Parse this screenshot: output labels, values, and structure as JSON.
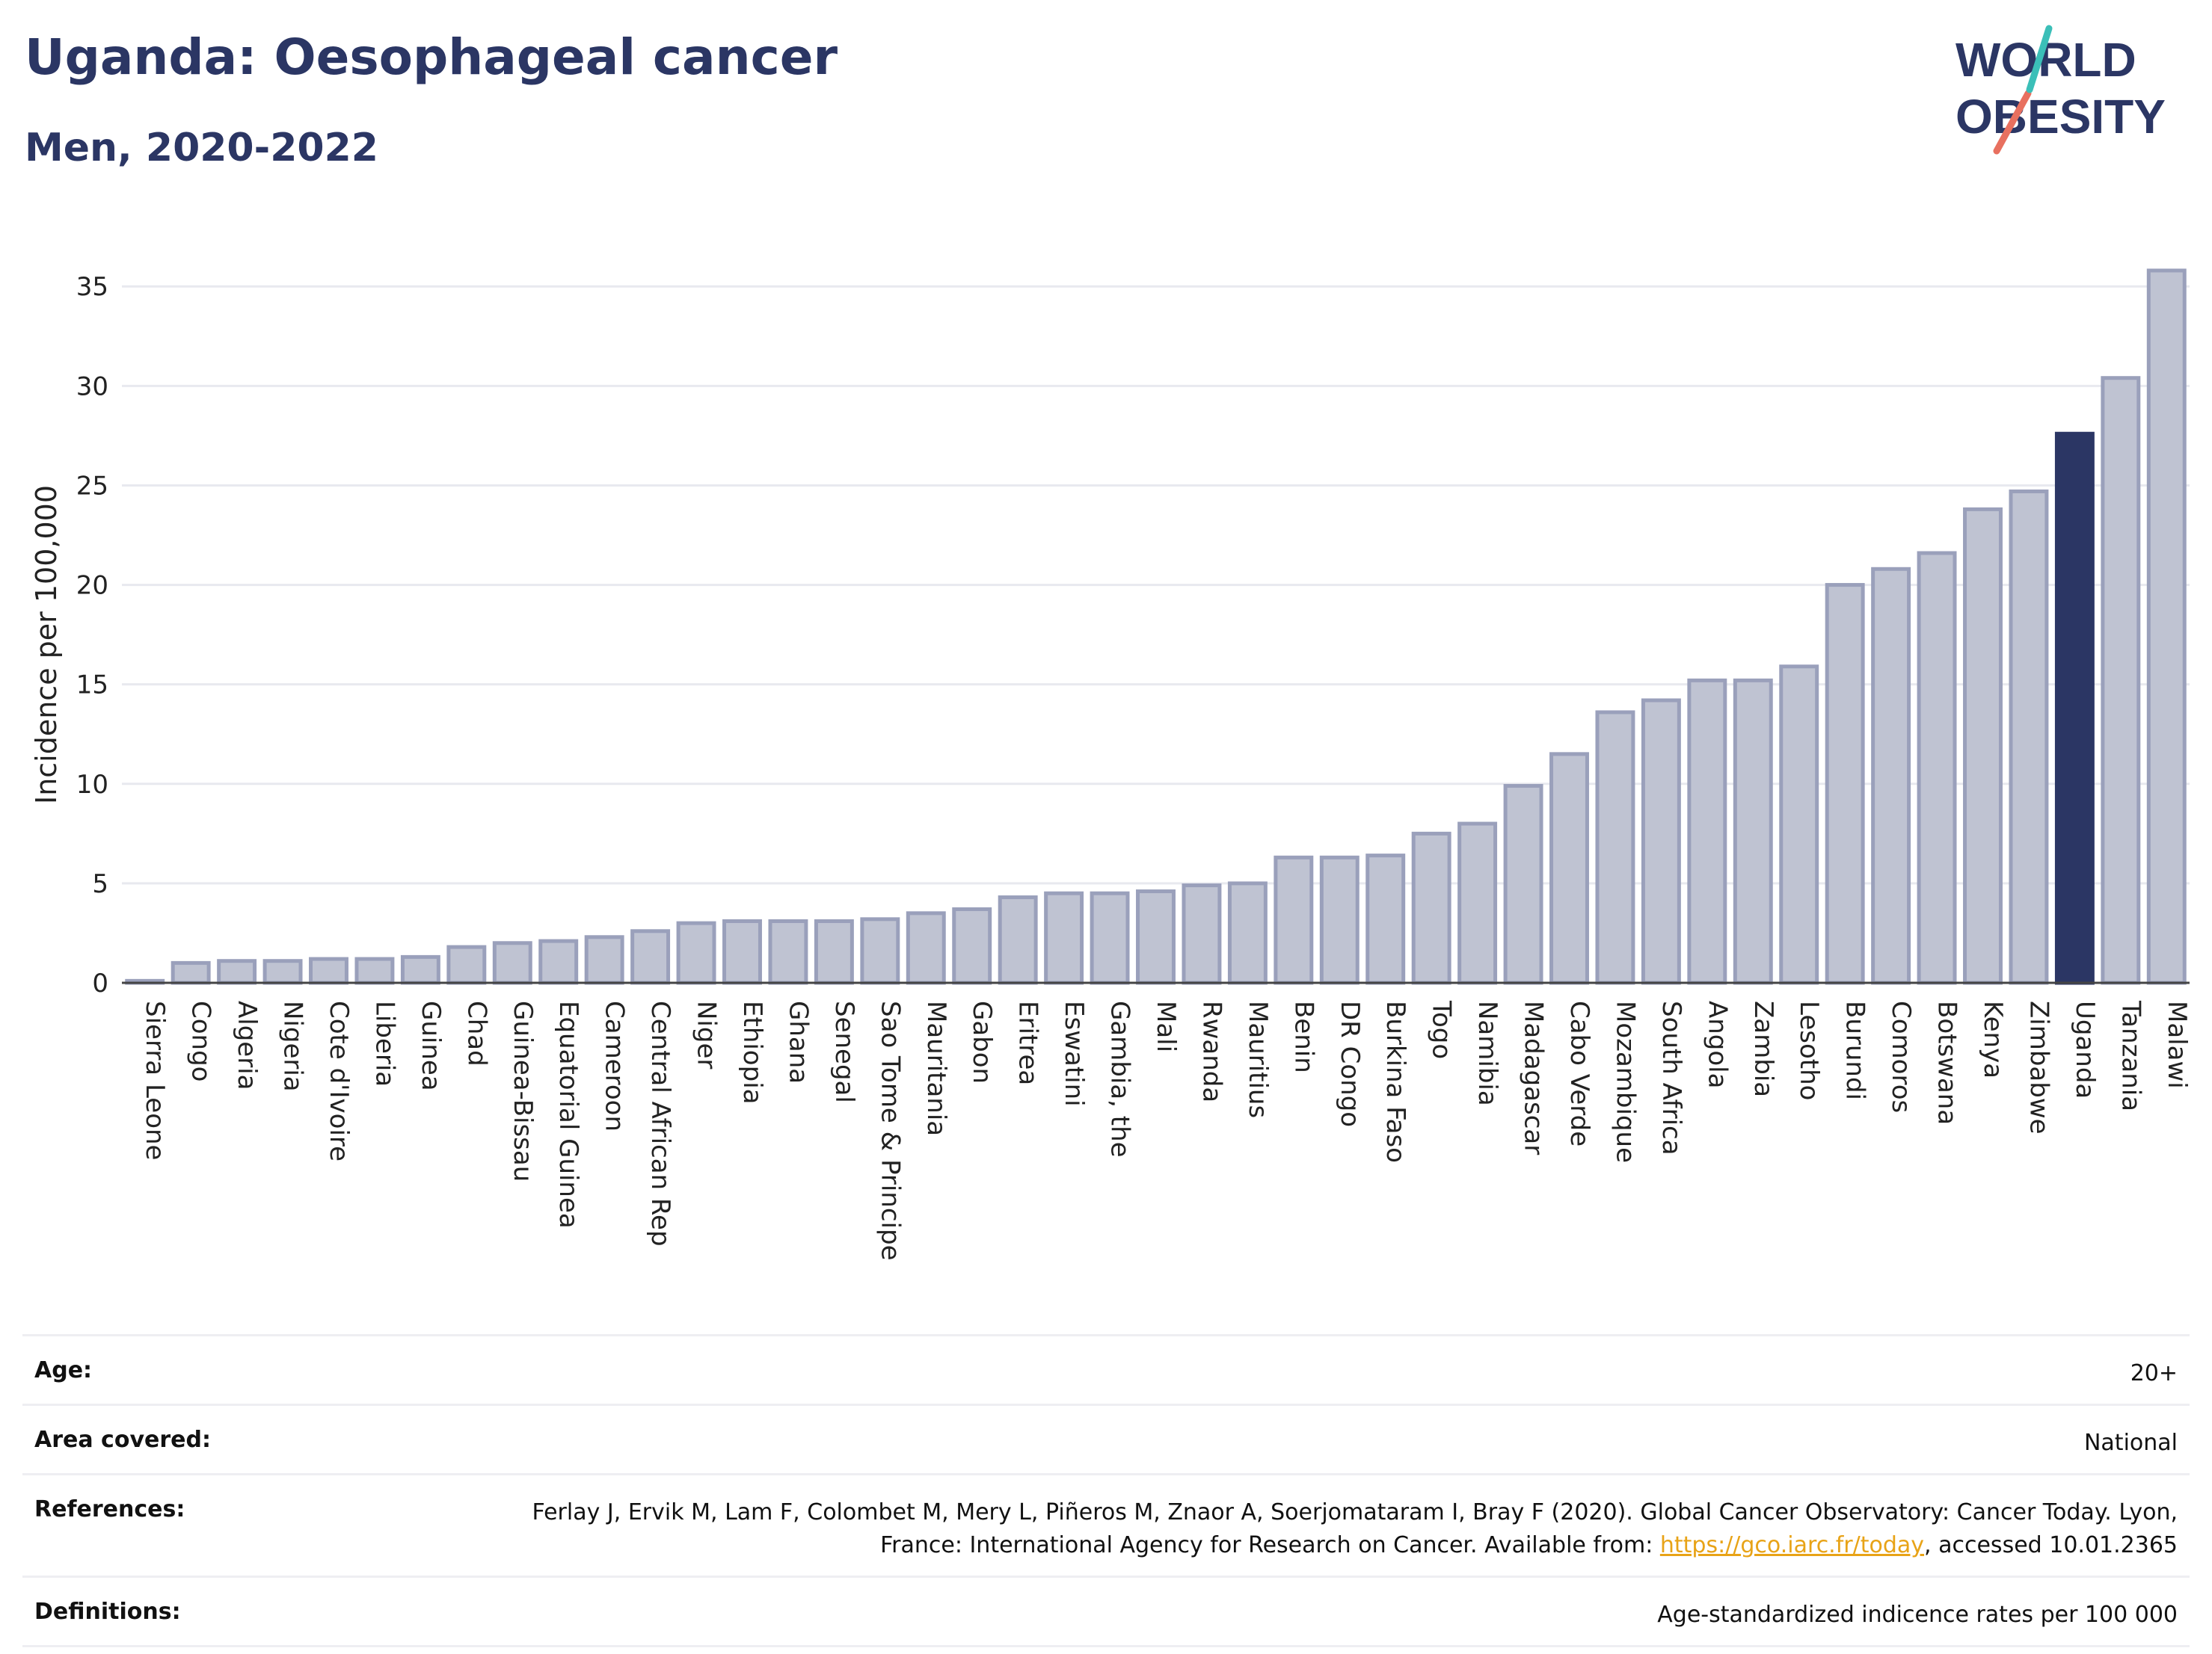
{
  "header": {
    "title": "Uganda: Oesophageal cancer",
    "subtitle": "Men, 2020-2022"
  },
  "logo": {
    "line1": "WORLD",
    "line2": "OBESITY"
  },
  "chart_data": {
    "type": "bar",
    "title": "Uganda: Oesophageal cancer",
    "subtitle": "Men, 2020-2022",
    "ylabel": "Incidence per 100,000",
    "xlabel": "",
    "ylim": [
      0,
      37
    ],
    "yticks": [
      0,
      5,
      10,
      15,
      20,
      25,
      30,
      35
    ],
    "grid": true,
    "highlight": "Uganda",
    "categories": [
      "Sierra Leone",
      "Congo",
      "Algeria",
      "Nigeria",
      "Cote d'Ivoire",
      "Liberia",
      "Guinea",
      "Chad",
      "Guinea-Bissau",
      "Equatorial Guinea",
      "Cameroon",
      "Central African Rep",
      "Niger",
      "Ethiopia",
      "Ghana",
      "Senegal",
      "Sao Tome & Principe",
      "Mauritania",
      "Gabon",
      "Eritrea",
      "Eswatini",
      "Gambia, the",
      "Mali",
      "Rwanda",
      "Mauritius",
      "Benin",
      "DR Congo",
      "Burkina Faso",
      "Togo",
      "Namibia",
      "Madagascar",
      "Cabo Verde",
      "Mozambique",
      "South Africa",
      "Angola",
      "Zambia",
      "Lesotho",
      "Burundi",
      "Comoros",
      "Botswana",
      "Kenya",
      "Zimbabwe",
      "Uganda",
      "Tanzania",
      "Malawi"
    ],
    "values": [
      0.1,
      1.0,
      1.1,
      1.1,
      1.2,
      1.2,
      1.3,
      1.8,
      2.0,
      2.1,
      2.3,
      2.6,
      3.0,
      3.1,
      3.1,
      3.1,
      3.2,
      3.5,
      3.7,
      4.3,
      4.5,
      4.5,
      4.6,
      4.9,
      5.0,
      6.3,
      6.3,
      6.4,
      7.5,
      8.0,
      9.9,
      11.5,
      13.6,
      14.2,
      15.2,
      15.2,
      15.9,
      20.0,
      20.8,
      21.6,
      23.8,
      24.7,
      27.6,
      30.4,
      35.8
    ],
    "colors": {
      "bar": "#bfc3d2",
      "bar_border": "#9aa0bb",
      "highlight": "#2b3664"
    }
  },
  "meta": {
    "age_label": "Age:",
    "age_value": "20+",
    "area_label": "Area covered:",
    "area_value": "National",
    "references_label": "References:",
    "references_text1": "Ferlay J, Ervik M, Lam F, Colombet M, Mery L, Piñeros M, Znaor A, Soerjomataram I, Bray F (2020). Global Cancer Observatory: Cancer Today. Lyon, France: International Agency for Research on Cancer. Available from: ",
    "references_link": "https://gco.iarc.fr/today",
    "references_text2": ", accessed 10.01.2365",
    "definitions_label": "Definitions:",
    "definitions_value": "Age-standardized indicence rates per 100 000"
  }
}
